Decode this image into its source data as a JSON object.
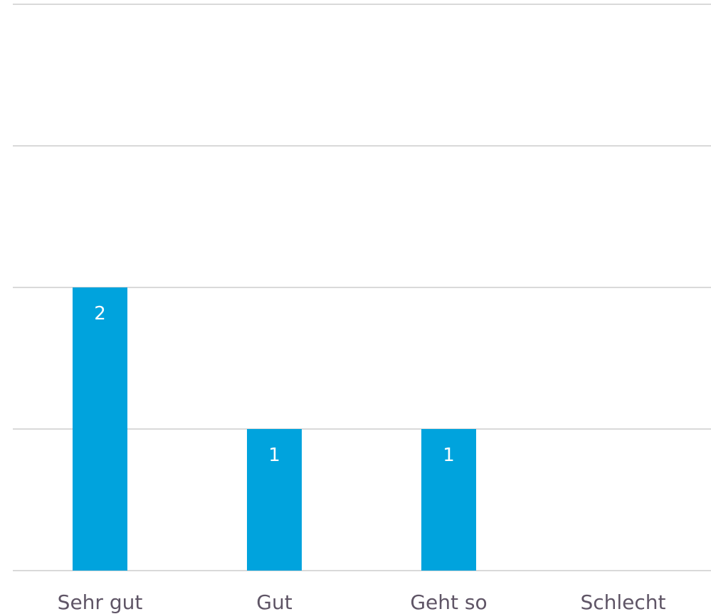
{
  "chart_data": {
    "type": "bar",
    "categories": [
      "Sehr gut",
      "Gut",
      "Geht so",
      "Schlecht"
    ],
    "values": [
      2,
      1,
      1,
      0
    ],
    "title": "",
    "xlabel": "",
    "ylabel": "",
    "ylim": [
      0,
      4
    ],
    "gridlines": [
      0,
      1,
      2,
      3,
      4
    ],
    "grid": true,
    "legend": "none",
    "data_labels": true,
    "colors": {
      "bar": "#00a3dd",
      "grid": "#d9d9d9",
      "category_text": "#5f5566",
      "data_label_text": "#ffffff"
    }
  }
}
